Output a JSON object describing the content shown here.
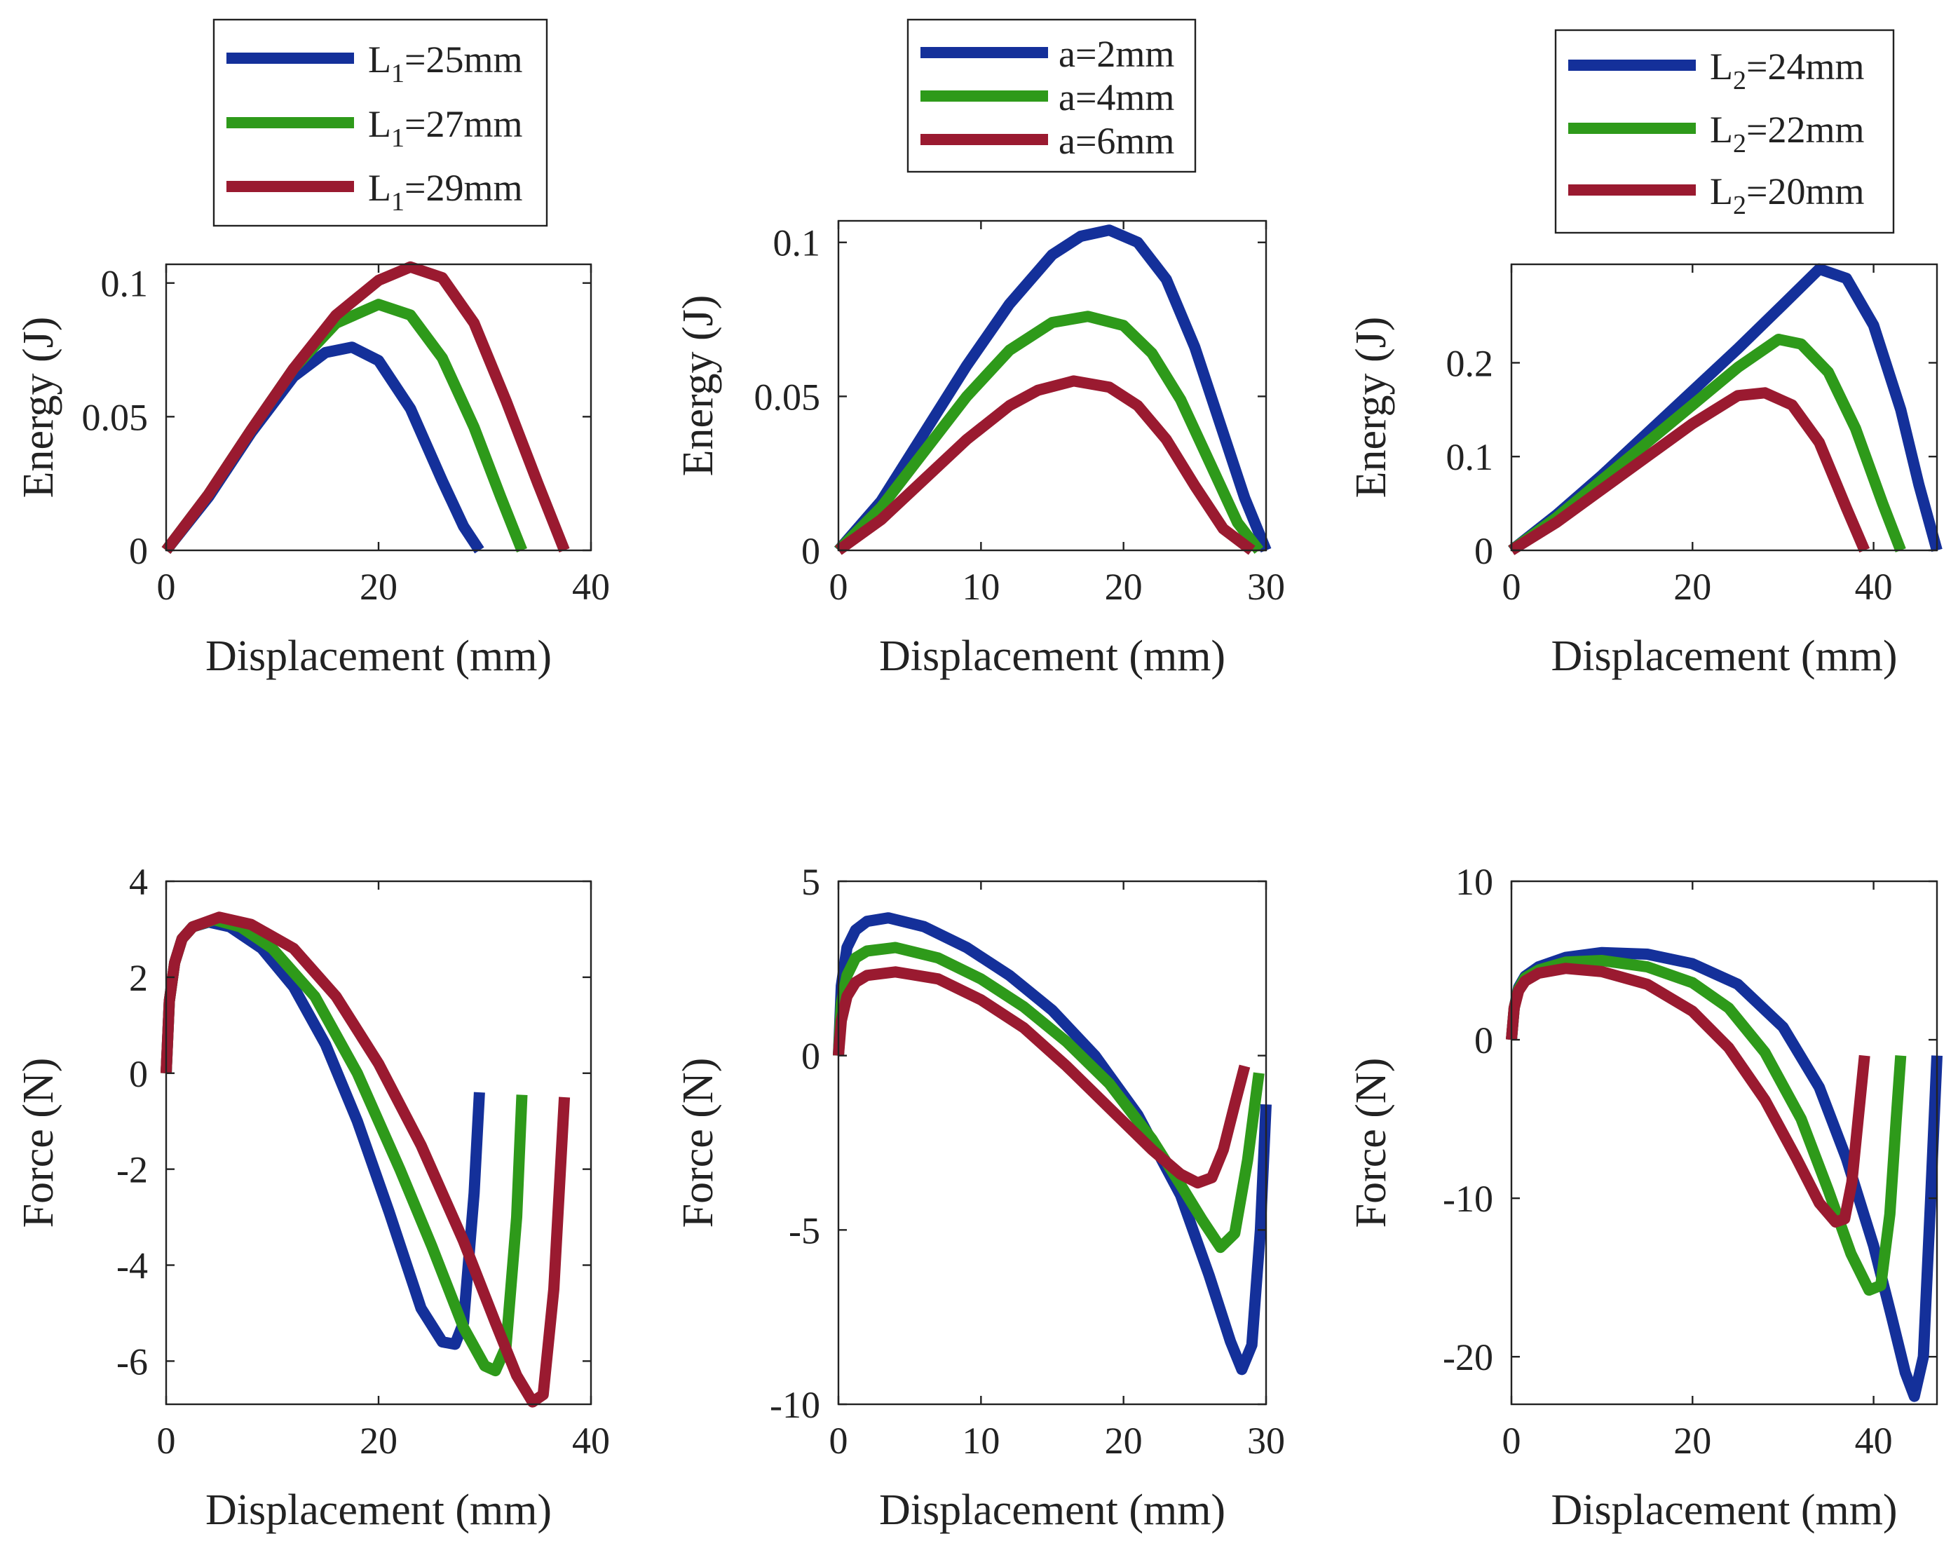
{
  "colors": {
    "blue": "#14309a",
    "green": "#2e9a1a",
    "red": "#9a1a30"
  },
  "chart_data": [
    {
      "id": "energy_L1",
      "type": "line",
      "xlabel": "Displacement (mm)",
      "ylabel": "Energy (J)",
      "xlim": [
        0,
        40
      ],
      "ylim": [
        0,
        0.107
      ],
      "xticks": [
        {
          "v": 0,
          "label": "0"
        },
        {
          "v": 20,
          "label": "20"
        },
        {
          "v": 40,
          "label": "40"
        }
      ],
      "yticks": [
        {
          "v": 0,
          "label": "0"
        },
        {
          "v": 0.05,
          "label": "0.05"
        },
        {
          "v": 0.1,
          "label": "0.1"
        }
      ],
      "legend": {
        "placement": "above",
        "subscript_style": true
      },
      "series": [
        {
          "name": "L1=25mm",
          "base": "L",
          "sub": "1",
          "suffix": "=25mm",
          "color": "blue",
          "x": [
            0,
            4,
            8,
            12,
            15,
            17.5,
            20,
            23,
            26,
            28,
            29.5
          ],
          "y": [
            0,
            0.02,
            0.044,
            0.065,
            0.074,
            0.076,
            0.071,
            0.053,
            0.026,
            0.009,
            0
          ]
        },
        {
          "name": "L1=27mm",
          "base": "L",
          "sub": "1",
          "suffix": "=27mm",
          "color": "green",
          "x": [
            0,
            4,
            8,
            12,
            16,
            20,
            23,
            26,
            29,
            31.5,
            33.5
          ],
          "y": [
            0,
            0.021,
            0.045,
            0.068,
            0.085,
            0.092,
            0.088,
            0.072,
            0.046,
            0.02,
            0
          ]
        },
        {
          "name": "L1=29mm",
          "base": "L",
          "sub": "1",
          "suffix": "=29mm",
          "color": "red",
          "x": [
            0,
            4,
            8,
            12,
            16,
            20,
            23,
            26,
            29,
            32,
            35,
            37.5
          ],
          "y": [
            0,
            0.021,
            0.045,
            0.068,
            0.088,
            0.101,
            0.106,
            0.102,
            0.085,
            0.056,
            0.025,
            0
          ]
        }
      ]
    },
    {
      "id": "energy_a",
      "type": "line",
      "xlabel": "Displacement (mm)",
      "ylabel": "Energy (J)",
      "xlim": [
        0,
        30
      ],
      "ylim": [
        0,
        0.107
      ],
      "xticks": [
        {
          "v": 0,
          "label": "0"
        },
        {
          "v": 10,
          "label": "10"
        },
        {
          "v": 20,
          "label": "20"
        },
        {
          "v": 30,
          "label": "30"
        }
      ],
      "yticks": [
        {
          "v": 0,
          "label": "0"
        },
        {
          "v": 0.05,
          "label": "0.05"
        },
        {
          "v": 0.1,
          "label": "0.1"
        }
      ],
      "legend": {
        "placement": "above",
        "subscript_style": false
      },
      "series": [
        {
          "name": "a=2mm",
          "base": "a=2mm",
          "sub": "",
          "suffix": "",
          "color": "blue",
          "x": [
            0,
            3,
            6,
            9,
            12,
            15,
            17,
            19,
            21,
            23,
            25,
            27,
            28.5,
            30
          ],
          "y": [
            0,
            0.016,
            0.038,
            0.06,
            0.08,
            0.096,
            0.102,
            0.104,
            0.1,
            0.088,
            0.066,
            0.038,
            0.017,
            0
          ]
        },
        {
          "name": "a=4mm",
          "base": "a=4mm",
          "sub": "",
          "suffix": "",
          "color": "green",
          "x": [
            0,
            3,
            6,
            9,
            12,
            15,
            17.5,
            20,
            22,
            24,
            26,
            28,
            29.5
          ],
          "y": [
            0,
            0.014,
            0.032,
            0.05,
            0.065,
            0.074,
            0.076,
            0.073,
            0.064,
            0.049,
            0.029,
            0.009,
            0
          ]
        },
        {
          "name": "a=6mm",
          "base": "a=6mm",
          "sub": "",
          "suffix": "",
          "color": "red",
          "x": [
            0,
            3,
            6,
            9,
            12,
            14,
            16.5,
            19,
            21,
            23,
            25,
            27,
            29
          ],
          "y": [
            0,
            0.01,
            0.023,
            0.036,
            0.047,
            0.052,
            0.055,
            0.053,
            0.047,
            0.036,
            0.021,
            0.007,
            0
          ]
        }
      ]
    },
    {
      "id": "energy_L2",
      "type": "line",
      "xlabel": "Displacement (mm)",
      "ylabel": "Energy (J)",
      "xlim": [
        0,
        47
      ],
      "ylim": [
        0,
        0.305
      ],
      "xticks": [
        {
          "v": 0,
          "label": "0"
        },
        {
          "v": 20,
          "label": "20"
        },
        {
          "v": 40,
          "label": "40"
        }
      ],
      "yticks": [
        {
          "v": 0,
          "label": "0"
        },
        {
          "v": 0.1,
          "label": "0.1"
        },
        {
          "v": 0.2,
          "label": "0.2"
        }
      ],
      "legend": {
        "placement": "above",
        "subscript_style": true
      },
      "series": [
        {
          "name": "L2=24mm",
          "base": "L",
          "sub": "2",
          "suffix": "=24mm",
          "color": "blue",
          "x": [
            0,
            5,
            10,
            15,
            20,
            25,
            30,
            34,
            37,
            40,
            43,
            45,
            47
          ],
          "y": [
            0,
            0.038,
            0.08,
            0.125,
            0.17,
            0.215,
            0.262,
            0.3,
            0.29,
            0.24,
            0.15,
            0.07,
            0
          ]
        },
        {
          "name": "L2=22mm",
          "base": "L",
          "sub": "2",
          "suffix": "=22mm",
          "color": "green",
          "x": [
            0,
            5,
            10,
            15,
            20,
            25,
            29.5,
            32,
            35,
            38,
            41,
            43
          ],
          "y": [
            0,
            0.035,
            0.075,
            0.115,
            0.155,
            0.195,
            0.225,
            0.22,
            0.19,
            0.13,
            0.05,
            0
          ]
        },
        {
          "name": "L2=20mm",
          "base": "L",
          "sub": "2",
          "suffix": "=20mm",
          "color": "red",
          "x": [
            0,
            5,
            10,
            15,
            20,
            25,
            28,
            31,
            34,
            37,
            39
          ],
          "y": [
            0,
            0.03,
            0.065,
            0.1,
            0.135,
            0.165,
            0.168,
            0.155,
            0.115,
            0.045,
            0
          ]
        }
      ]
    },
    {
      "id": "force_L1",
      "type": "line",
      "xlabel": "Displacement (mm)",
      "ylabel": "Force (N)",
      "xlim": [
        0,
        40
      ],
      "ylim": [
        -6.9,
        4
      ],
      "xticks": [
        {
          "v": 0,
          "label": "0"
        },
        {
          "v": 20,
          "label": "20"
        },
        {
          "v": 40,
          "label": "40"
        }
      ],
      "yticks": [
        {
          "v": 4,
          "label": "4"
        },
        {
          "v": 2,
          "label": "2"
        },
        {
          "v": 0,
          "label": "0"
        },
        {
          "v": -2,
          "label": "-2"
        },
        {
          "v": -4,
          "label": "-4"
        },
        {
          "v": -6,
          "label": "-6"
        }
      ],
      "series": [
        {
          "name": "L1=25mm",
          "color": "blue",
          "x": [
            0,
            0.3,
            0.8,
            1.5,
            2.5,
            4,
            6,
            9,
            12,
            15,
            18,
            21,
            24,
            26,
            27.2,
            28,
            29,
            29.5
          ],
          "y": [
            0,
            1.5,
            2.3,
            2.8,
            3.05,
            3.15,
            3.05,
            2.6,
            1.8,
            0.6,
            -1,
            -2.9,
            -4.9,
            -5.6,
            -5.65,
            -5.2,
            -2.5,
            -0.4
          ]
        },
        {
          "name": "L1=27mm",
          "color": "green",
          "x": [
            0,
            0.3,
            0.8,
            1.5,
            2.5,
            4.5,
            7,
            10,
            14,
            18,
            22,
            25,
            28,
            30,
            31,
            32,
            33,
            33.5
          ],
          "y": [
            0,
            1.5,
            2.3,
            2.8,
            3.05,
            3.2,
            3.05,
            2.6,
            1.6,
            0,
            -2,
            -3.6,
            -5.3,
            -6.1,
            -6.2,
            -5.7,
            -3,
            -0.45
          ]
        },
        {
          "name": "L1=29mm",
          "color": "red",
          "x": [
            0,
            0.3,
            0.8,
            1.5,
            2.5,
            5,
            8,
            12,
            16,
            20,
            24,
            28,
            31,
            33,
            34.5,
            35.5,
            36.5,
            37.5
          ],
          "y": [
            0,
            1.5,
            2.3,
            2.8,
            3.05,
            3.25,
            3.1,
            2.6,
            1.6,
            0.2,
            -1.5,
            -3.5,
            -5.2,
            -6.3,
            -6.85,
            -6.7,
            -4.5,
            -0.5
          ]
        }
      ]
    },
    {
      "id": "force_a",
      "type": "line",
      "xlabel": "Displacement (mm)",
      "ylabel": "Force (N)",
      "xlim": [
        0,
        30
      ],
      "ylim": [
        -10,
        5
      ],
      "xticks": [
        {
          "v": 0,
          "label": "0"
        },
        {
          "v": 10,
          "label": "10"
        },
        {
          "v": 20,
          "label": "20"
        },
        {
          "v": 30,
          "label": "30"
        }
      ],
      "yticks": [
        {
          "v": 5,
          "label": "5"
        },
        {
          "v": 0,
          "label": "0"
        },
        {
          "v": -5,
          "label": "-5"
        },
        {
          "v": -10,
          "label": "-10"
        }
      ],
      "series": [
        {
          "name": "a=2mm",
          "color": "blue",
          "x": [
            0,
            0.2,
            0.6,
            1.2,
            2,
            3.5,
            6,
            9,
            12,
            15,
            18,
            21,
            24,
            26,
            27.5,
            28.3,
            29,
            29.6,
            30
          ],
          "y": [
            0,
            2,
            3.1,
            3.6,
            3.85,
            3.95,
            3.7,
            3.1,
            2.3,
            1.3,
            0,
            -1.7,
            -4,
            -6.3,
            -8.2,
            -9,
            -8.3,
            -5,
            -1.4
          ]
        },
        {
          "name": "a=4mm",
          "color": "green",
          "x": [
            0,
            0.2,
            0.6,
            1.2,
            2,
            4,
            7,
            10,
            13,
            16,
            19,
            22,
            24,
            25.5,
            26.8,
            27.8,
            28.7,
            29.5
          ],
          "y": [
            0,
            1.5,
            2.3,
            2.8,
            3,
            3.1,
            2.8,
            2.2,
            1.4,
            0.4,
            -0.8,
            -2.4,
            -3.7,
            -4.7,
            -5.5,
            -5.1,
            -3,
            -0.5
          ]
        },
        {
          "name": "a=6mm",
          "color": "red",
          "x": [
            0,
            0.2,
            0.6,
            1.2,
            2,
            4,
            7,
            10,
            13,
            16,
            19,
            22,
            24,
            25.2,
            26.2,
            27,
            27.8,
            28.5
          ],
          "y": [
            0,
            1,
            1.7,
            2.1,
            2.3,
            2.4,
            2.2,
            1.6,
            0.8,
            -0.3,
            -1.5,
            -2.7,
            -3.4,
            -3.65,
            -3.5,
            -2.7,
            -1.4,
            -0.3
          ]
        }
      ]
    },
    {
      "id": "force_L2",
      "type": "line",
      "xlabel": "Displacement (mm)",
      "ylabel": "Force (N)",
      "xlim": [
        0,
        47
      ],
      "ylim": [
        -23,
        10
      ],
      "xticks": [
        {
          "v": 0,
          "label": "0"
        },
        {
          "v": 20,
          "label": "20"
        },
        {
          "v": 40,
          "label": "40"
        }
      ],
      "yticks": [
        {
          "v": 10,
          "label": "10"
        },
        {
          "v": 0,
          "label": "0"
        },
        {
          "v": -10,
          "label": "-10"
        },
        {
          "v": -20,
          "label": "-20"
        }
      ],
      "series": [
        {
          "name": "L2=24mm",
          "color": "blue",
          "x": [
            0,
            0.3,
            0.8,
            1.5,
            3,
            6,
            10,
            15,
            20,
            25,
            30,
            34,
            37,
            40,
            42,
            43.5,
            44.5,
            45.5,
            46.3,
            47
          ],
          "y": [
            0,
            2,
            3.3,
            4,
            4.6,
            5.2,
            5.5,
            5.4,
            4.8,
            3.5,
            0.8,
            -3,
            -7.5,
            -13,
            -17.5,
            -21,
            -22.5,
            -20,
            -10,
            -1
          ]
        },
        {
          "name": "L2=22mm",
          "color": "green",
          "x": [
            0,
            0.3,
            0.8,
            1.5,
            3,
            6,
            10,
            15,
            20,
            24,
            28,
            32,
            35,
            37.5,
            39.5,
            40.8,
            41.8,
            42.5,
            43
          ],
          "y": [
            0,
            2,
            3.2,
            3.9,
            4.4,
            4.9,
            5,
            4.6,
            3.6,
            2,
            -0.8,
            -5,
            -9.5,
            -13.5,
            -15.8,
            -15.5,
            -11,
            -5,
            -1
          ]
        },
        {
          "name": "L2=20mm",
          "color": "red",
          "x": [
            0,
            0.3,
            0.8,
            1.5,
            3,
            6,
            10,
            15,
            20,
            24,
            28,
            31.5,
            34,
            35.8,
            36.8,
            37.6,
            38.3,
            39
          ],
          "y": [
            0,
            2,
            3.1,
            3.7,
            4.2,
            4.5,
            4.3,
            3.5,
            1.8,
            -0.5,
            -3.8,
            -7.5,
            -10.3,
            -11.5,
            -11.3,
            -9,
            -5,
            -1
          ]
        }
      ]
    }
  ]
}
